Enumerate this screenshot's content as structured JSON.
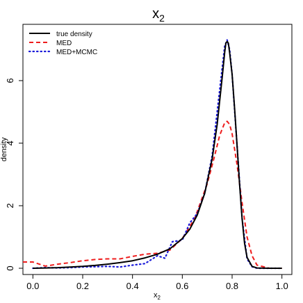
{
  "chart_data": {
    "type": "line",
    "title": "x",
    "title_subscript": "2",
    "xlabel": "x",
    "xlabel_subscript": "2",
    "ylabel": "density",
    "xlim": [
      -0.04,
      1.04
    ],
    "ylim": [
      -0.2,
      7.8
    ],
    "xticks": [
      0.0,
      0.2,
      0.4,
      0.6,
      0.8,
      1.0
    ],
    "xtick_labels": [
      "0.0",
      "0.2",
      "0.4",
      "0.6",
      "0.8",
      "1.0"
    ],
    "yticks": [
      0,
      2,
      4,
      6
    ],
    "ytick_labels": [
      "0",
      "2",
      "4",
      "6"
    ],
    "grid": false,
    "legend_position": "top-left",
    "series": [
      {
        "name": "true density",
        "color": "#000000",
        "style": "solid",
        "x": [
          0.0,
          0.05,
          0.1,
          0.15,
          0.2,
          0.25,
          0.3,
          0.35,
          0.4,
          0.45,
          0.5,
          0.55,
          0.6,
          0.63,
          0.66,
          0.69,
          0.72,
          0.74,
          0.76,
          0.77,
          0.775,
          0.78,
          0.785,
          0.79,
          0.8,
          0.81,
          0.82,
          0.83,
          0.84,
          0.85,
          0.86,
          0.88,
          0.9,
          0.95,
          1.0
        ],
        "y": [
          0.0,
          0.01,
          0.02,
          0.04,
          0.06,
          0.09,
          0.13,
          0.18,
          0.24,
          0.33,
          0.45,
          0.62,
          0.95,
          1.25,
          1.7,
          2.4,
          3.5,
          4.6,
          6.1,
          6.9,
          7.2,
          7.25,
          7.2,
          6.9,
          6.2,
          5.1,
          3.9,
          2.7,
          1.6,
          0.8,
          0.35,
          0.06,
          0.01,
          0.0,
          0.0
        ]
      },
      {
        "name": "MED",
        "color": "#ee1c1c",
        "style": "dashed",
        "x": [
          -0.04,
          0.0,
          0.05,
          0.1,
          0.15,
          0.2,
          0.25,
          0.3,
          0.35,
          0.4,
          0.45,
          0.5,
          0.55,
          0.6,
          0.65,
          0.7,
          0.73,
          0.75,
          0.77,
          0.78,
          0.79,
          0.8,
          0.82,
          0.84,
          0.86,
          0.88,
          0.9,
          0.95,
          1.0
        ],
        "y": [
          0.2,
          0.2,
          0.07,
          0.13,
          0.18,
          0.24,
          0.28,
          0.3,
          0.3,
          0.38,
          0.45,
          0.48,
          0.58,
          0.95,
          1.6,
          2.7,
          3.6,
          4.25,
          4.65,
          4.7,
          4.6,
          4.3,
          3.3,
          2.1,
          1.0,
          0.4,
          0.1,
          0.0,
          0.0
        ]
      },
      {
        "name": "MED+MCMC",
        "color": "#1a1ad9",
        "style": "dotted",
        "x": [
          0.0,
          0.05,
          0.1,
          0.15,
          0.2,
          0.25,
          0.3,
          0.35,
          0.4,
          0.45,
          0.5,
          0.53,
          0.56,
          0.6,
          0.63,
          0.66,
          0.69,
          0.72,
          0.75,
          0.77,
          0.78,
          0.79,
          0.8,
          0.82,
          0.84,
          0.86,
          0.88,
          0.9,
          1.0
        ],
        "y": [
          0.0,
          0.02,
          0.01,
          0.02,
          0.04,
          0.05,
          0.06,
          0.04,
          0.1,
          0.15,
          0.4,
          0.32,
          0.85,
          0.9,
          1.45,
          1.75,
          2.4,
          3.6,
          5.7,
          7.1,
          7.3,
          7.0,
          6.2,
          3.9,
          1.6,
          0.3,
          0.05,
          0.0,
          0.0
        ]
      }
    ]
  }
}
